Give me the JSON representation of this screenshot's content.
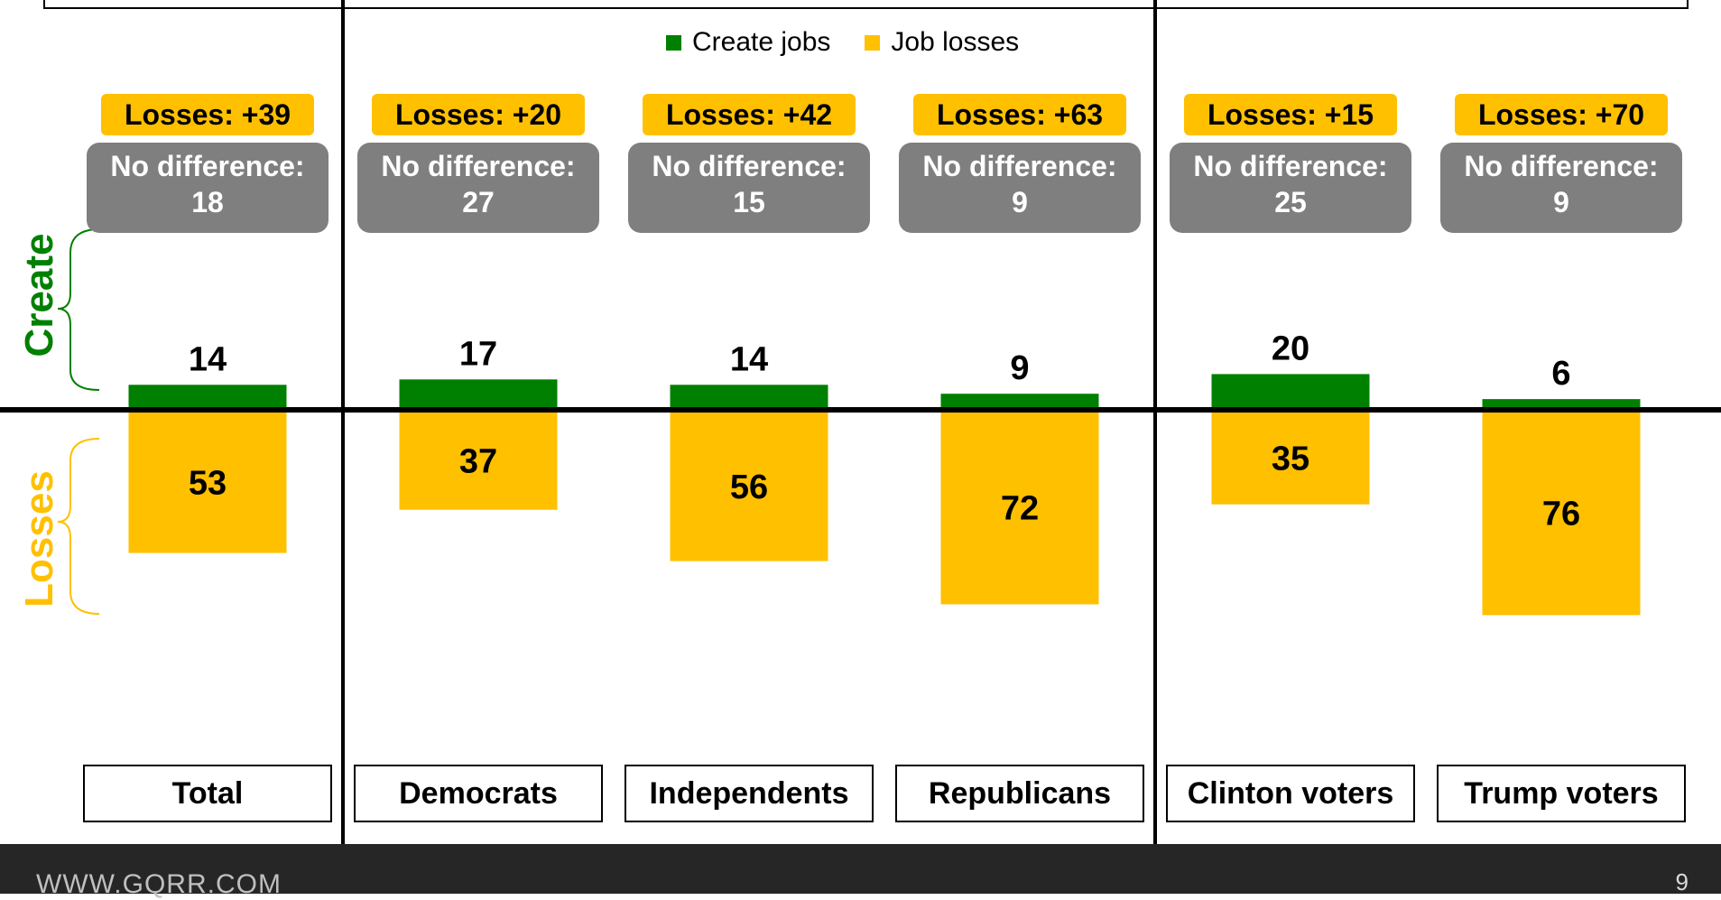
{
  "chart_data": {
    "type": "bar",
    "categories": [
      "Total",
      "Democrats",
      "Independents",
      "Republicans",
      "Clinton voters",
      "Trump voters"
    ],
    "series": [
      {
        "name": "Create jobs",
        "color": "#008000",
        "values": [
          14,
          17,
          14,
          9,
          20,
          6
        ]
      },
      {
        "name": "Job losses",
        "color": "#ffc000",
        "values": [
          53,
          37,
          56,
          72,
          35,
          76
        ]
      }
    ],
    "losses_labels": [
      "Losses: +39",
      "Losses: +20",
      "Losses: +42",
      "Losses: +63",
      "Losses: +15",
      "Losses: +70"
    ],
    "no_difference": {
      "label": "No difference:",
      "values": [
        "18",
        "27",
        "15",
        "9",
        "25",
        "9"
      ]
    },
    "side_labels": {
      "create": "Create",
      "losses": "Losses"
    },
    "legend_placement": "top-center"
  },
  "footer": {
    "logo_text": "WWW.GQRR.COM",
    "page_number": "9"
  }
}
